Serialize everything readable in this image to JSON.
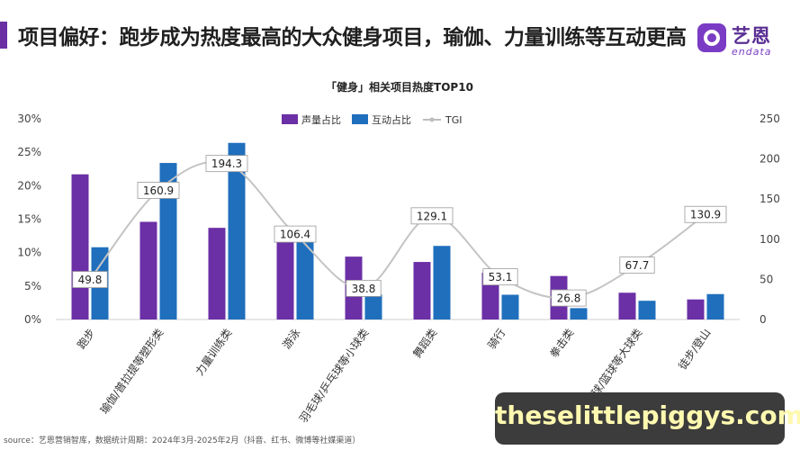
{
  "header": {
    "title": "项目偏好：跑步成为热度最高的大众健身项目，瑜伽、力量训练等互动更高",
    "accent_color": "#6a2fa3"
  },
  "logo": {
    "cn": "艺恩",
    "en": "endata",
    "icon": "endata-logo-icon"
  },
  "chart_data": {
    "type": "bar",
    "title": "「健身」相关项目热度TOP10",
    "categories": [
      "跑步",
      "瑜伽/普拉提等塑形类",
      "力量训练类",
      "游泳",
      "羽毛球/乒乓球等小球类",
      "舞蹈类",
      "骑行",
      "拳击类",
      "足球/篮球等大球类",
      "徒步/登山"
    ],
    "series": [
      {
        "name": "声量占比",
        "color": "#6b2fa6",
        "values": [
          21.7,
          14.6,
          13.7,
          11.8,
          9.4,
          8.6,
          7.0,
          6.5,
          4.0,
          3.0
        ]
      },
      {
        "name": "互动占比",
        "color": "#1f6fbd",
        "values": [
          10.8,
          23.4,
          26.4,
          11.9,
          3.7,
          11.0,
          3.7,
          1.7,
          2.8,
          3.8
        ]
      }
    ],
    "line_series": {
      "name": "TGI",
      "color": "#c8c8c8",
      "values": [
        49.8,
        160.9,
        194.3,
        106.4,
        38.8,
        129.1,
        53.1,
        26.8,
        67.7,
        130.9
      ]
    },
    "y_left": {
      "ticks": [
        "0%",
        "5%",
        "10%",
        "15%",
        "20%",
        "25%",
        "30%"
      ],
      "range": [
        0,
        30
      ]
    },
    "y_right": {
      "ticks": [
        "0",
        "50",
        "100",
        "150",
        "200",
        "250"
      ],
      "range": [
        0,
        250
      ]
    },
    "legend_position": "top-center",
    "grid": false
  },
  "source": "source：艺恩营销智库，数据统计周期：2024年3月-2025年2月（抖音、红书、微博等社媒渠道）",
  "watermark": "theselittlepiggys.com"
}
